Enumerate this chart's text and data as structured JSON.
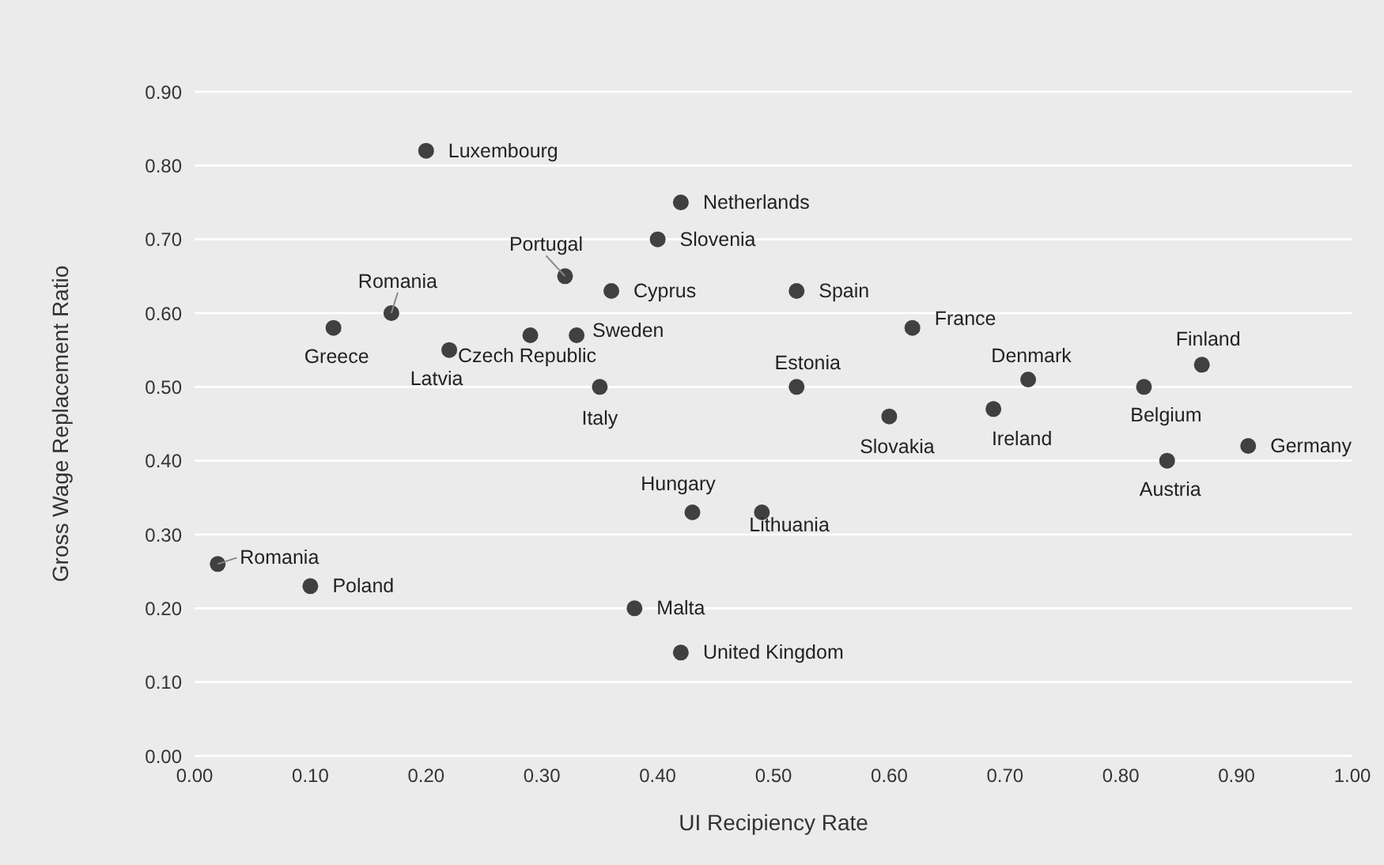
{
  "chart_data": {
    "type": "scatter",
    "xlabel": "UI Recipiency Rate",
    "ylabel": "Gross Wage Replacement Ratio",
    "x": [
      0.2,
      0.42,
      0.4,
      0.32,
      0.36,
      0.52,
      0.17,
      0.12,
      0.62,
      0.22,
      0.29,
      0.33,
      0.87,
      0.72,
      0.52,
      0.35,
      0.82,
      0.69,
      0.6,
      0.91,
      0.84,
      0.43,
      0.49,
      0.02,
      0.1,
      0.38,
      0.42
    ],
    "values": [
      0.82,
      0.75,
      0.7,
      0.65,
      0.63,
      0.63,
      0.6,
      0.58,
      0.58,
      0.55,
      0.57,
      0.57,
      0.53,
      0.51,
      0.5,
      0.5,
      0.5,
      0.47,
      0.46,
      0.42,
      0.4,
      0.33,
      0.33,
      0.26,
      0.23,
      0.2,
      0.14
    ],
    "color": "#404040",
    "marker": "circle",
    "grid": "y",
    "xlim": [
      0,
      1
    ],
    "ylim": [
      0,
      0.9
    ],
    "xticks": [
      {
        "value": 0,
        "label": "0.00"
      },
      {
        "value": 0.1,
        "label": "0.10"
      },
      {
        "value": 0.2,
        "label": "0.20"
      },
      {
        "value": 0.3,
        "label": "0.30"
      },
      {
        "value": 0.4,
        "label": "0.40"
      },
      {
        "value": 0.5,
        "label": "0.50"
      },
      {
        "value": 0.6,
        "label": "0.60"
      },
      {
        "value": 0.7,
        "label": "0.70"
      },
      {
        "value": 0.8,
        "label": "0.80"
      },
      {
        "value": 0.9,
        "label": "0.90"
      },
      {
        "value": 1,
        "label": "1.00"
      }
    ],
    "yticks": [
      {
        "value": 0,
        "label": "0.00"
      },
      {
        "value": 0.1,
        "label": "0.10"
      },
      {
        "value": 0.2,
        "label": "0.20"
      },
      {
        "value": 0.3,
        "label": "0.30"
      },
      {
        "value": 0.4,
        "label": "0.40"
      },
      {
        "value": 0.5,
        "label": "0.50"
      },
      {
        "value": 0.6,
        "label": "0.60"
      },
      {
        "value": 0.7,
        "label": "0.70"
      },
      {
        "value": 0.8,
        "label": "0.80"
      },
      {
        "value": 0.9,
        "label": "0.90"
      }
    ],
    "annotations": [
      {
        "text": "Luxembourg",
        "x": 0.2,
        "y": 0.82
      },
      {
        "text": "Netherlands",
        "x": 0.42,
        "y": 0.75
      },
      {
        "text": "Slovenia",
        "x": 0.4,
        "y": 0.7
      },
      {
        "text": "Portugal",
        "x": 0.32,
        "y": 0.65
      },
      {
        "text": "Cyprus",
        "x": 0.36,
        "y": 0.63
      },
      {
        "text": "Spain",
        "x": 0.52,
        "y": 0.63
      },
      {
        "text": "Romania",
        "x": 0.17,
        "y": 0.6
      },
      {
        "text": "Greece",
        "x": 0.12,
        "y": 0.58
      },
      {
        "text": "France",
        "x": 0.62,
        "y": 0.58
      },
      {
        "text": "Latvia",
        "x": 0.22,
        "y": 0.55
      },
      {
        "text": "Czech Republic",
        "x": 0.29,
        "y": 0.57
      },
      {
        "text": "Sweden",
        "x": 0.33,
        "y": 0.57
      },
      {
        "text": "Finland",
        "x": 0.87,
        "y": 0.53
      },
      {
        "text": "Denmark",
        "x": 0.72,
        "y": 0.51
      },
      {
        "text": "Estonia",
        "x": 0.52,
        "y": 0.5
      },
      {
        "text": "Italy",
        "x": 0.35,
        "y": 0.5
      },
      {
        "text": "Belgium",
        "x": 0.82,
        "y": 0.5
      },
      {
        "text": "Ireland",
        "x": 0.69,
        "y": 0.47
      },
      {
        "text": "Slovakia",
        "x": 0.6,
        "y": 0.46
      },
      {
        "text": "Germany",
        "x": 0.91,
        "y": 0.42
      },
      {
        "text": "Austria",
        "x": 0.84,
        "y": 0.4
      },
      {
        "text": "Hungary",
        "x": 0.43,
        "y": 0.33
      },
      {
        "text": "Lithuania",
        "x": 0.49,
        "y": 0.33
      },
      {
        "text": "Romania",
        "x": 0.02,
        "y": 0.26
      },
      {
        "text": "Poland",
        "x": 0.1,
        "y": 0.23
      },
      {
        "text": "Malta",
        "x": 0.38,
        "y": 0.2
      },
      {
        "text": "United Kingdom",
        "x": 0.42,
        "y": 0.14
      }
    ]
  }
}
